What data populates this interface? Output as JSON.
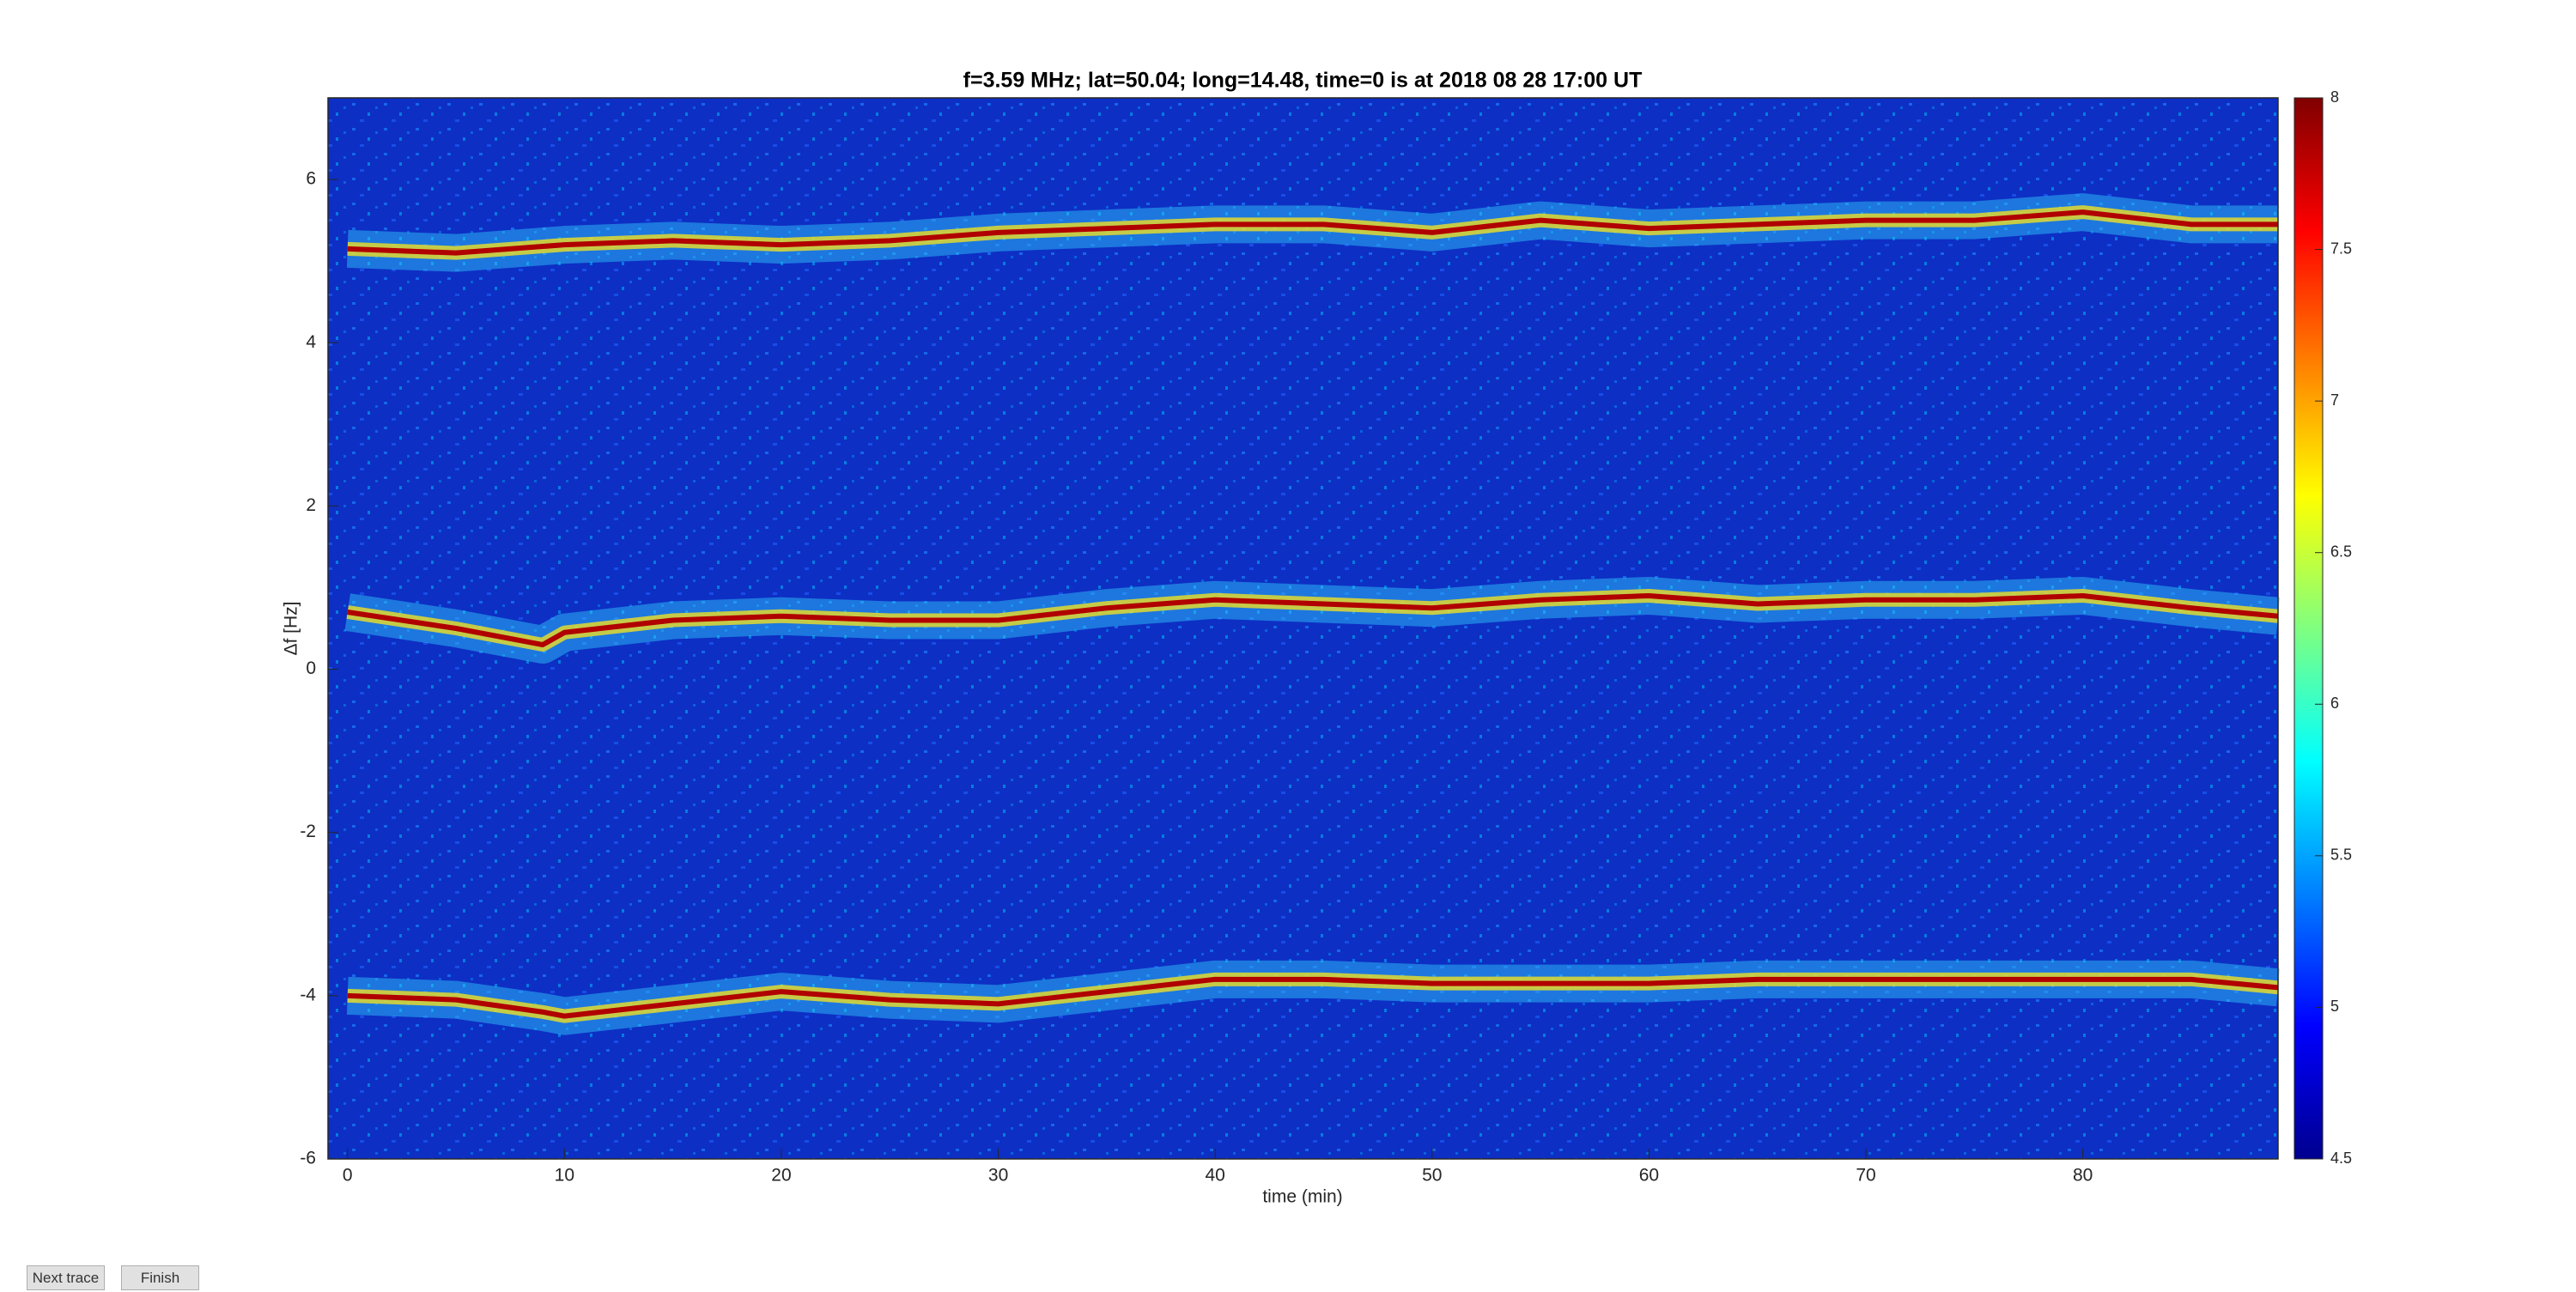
{
  "chart_data": {
    "type": "line",
    "title": "f=3.59 MHz;  lat=50.04; long=14.48, time=0 is at 2018 08 28 17:00 UT",
    "x_label": "time (min)",
    "y_label": "Δf [Hz]",
    "x": [
      0,
      5,
      9,
      10,
      15,
      20,
      25,
      30,
      35,
      40,
      45,
      50,
      55,
      60,
      65,
      70,
      75,
      80,
      85,
      89
    ],
    "series": [
      {
        "color": "#b00000",
        "values": [
          5.15,
          5.1,
          5.18,
          5.2,
          5.25,
          5.2,
          5.25,
          5.35,
          5.4,
          5.45,
          5.45,
          5.35,
          5.5,
          5.4,
          5.45,
          5.5,
          5.5,
          5.6,
          5.45,
          5.45
        ]
      },
      {
        "color": "#b00000",
        "values": [
          0.7,
          0.5,
          0.3,
          0.45,
          0.6,
          0.65,
          0.6,
          0.6,
          0.75,
          0.85,
          0.8,
          0.75,
          0.85,
          0.9,
          0.8,
          0.85,
          0.85,
          0.9,
          0.75,
          0.65
        ]
      },
      {
        "color": "#b00000",
        "values": [
          -4,
          -4.05,
          -4.2,
          -4.25,
          -4.1,
          -3.95,
          -4.05,
          -4.1,
          -3.95,
          -3.8,
          -3.8,
          -3.85,
          -3.85,
          -3.85,
          -3.8,
          -3.8,
          -3.8,
          -3.8,
          -3.8,
          -3.9
        ]
      }
    ],
    "xlim": [
      -0.9,
      89
    ],
    "xticks": [
      0,
      10,
      20,
      30,
      40,
      50,
      60,
      70,
      80
    ],
    "ylim": [
      -6,
      7
    ],
    "yticks": [
      -6,
      -4,
      -2,
      0,
      2,
      4,
      6
    ],
    "colormap": "jet",
    "clim": [
      4.5,
      8
    ],
    "cticks": [
      4.5,
      5,
      5.5,
      6,
      6.5,
      7,
      7.5,
      8
    ],
    "grid": false
  },
  "buttons": [
    "Next trace",
    "Finish"
  ]
}
